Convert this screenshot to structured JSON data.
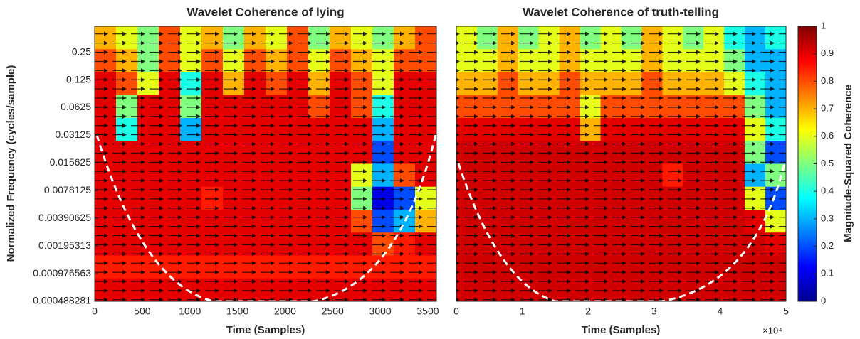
{
  "chart_data": [
    {
      "type": "heatmap",
      "title": "Wavelet Coherence of lying",
      "xlabel": "Time (Samples)",
      "ylabel": "Normalized Frequency  (cycles/sample)",
      "xlim": [
        0,
        3590
      ],
      "xticks": [
        0,
        500,
        1000,
        1500,
        2000,
        2500,
        3000,
        3500
      ],
      "ylim": [
        0.000488281,
        0.48
      ],
      "yscale": "log2",
      "yticks": [
        0.000488281,
        0.000976563,
        0.00195313,
        0.00390625,
        0.0078125,
        0.015625,
        0.03125,
        0.0625,
        0.125,
        0.25
      ],
      "z": [
        [
          0.7,
          0.6,
          0.5,
          0.8,
          0.6,
          0.7,
          0.5,
          0.7,
          0.6,
          0.8,
          0.5,
          0.7,
          0.6,
          0.5,
          0.7,
          0.8
        ],
        [
          0.8,
          0.7,
          0.5,
          0.8,
          0.6,
          0.8,
          0.6,
          0.8,
          0.7,
          0.8,
          0.6,
          0.8,
          0.7,
          0.6,
          0.8,
          0.8
        ],
        [
          0.9,
          0.8,
          0.6,
          0.9,
          0.4,
          0.9,
          0.7,
          0.9,
          0.8,
          0.9,
          0.7,
          0.9,
          0.8,
          0.6,
          0.9,
          0.9
        ],
        [
          0.9,
          0.5,
          0.9,
          0.9,
          0.5,
          0.9,
          0.9,
          0.9,
          0.9,
          0.9,
          0.8,
          0.9,
          0.8,
          0.4,
          0.9,
          0.9
        ],
        [
          0.9,
          0.4,
          0.9,
          0.9,
          0.3,
          0.9,
          0.9,
          0.9,
          0.9,
          0.9,
          0.9,
          0.9,
          0.9,
          0.3,
          0.9,
          0.9
        ],
        [
          0.9,
          0.9,
          0.9,
          0.9,
          0.9,
          0.9,
          0.9,
          0.9,
          0.9,
          0.9,
          0.9,
          0.9,
          0.9,
          0.2,
          0.9,
          0.9
        ],
        [
          0.9,
          0.9,
          0.9,
          0.9,
          0.9,
          0.9,
          0.9,
          0.9,
          0.9,
          0.9,
          0.9,
          0.9,
          0.6,
          0.3,
          0.8,
          0.9
        ],
        [
          0.9,
          0.9,
          0.9,
          0.9,
          0.9,
          0.85,
          0.9,
          0.9,
          0.9,
          0.9,
          0.9,
          0.9,
          0.5,
          0.1,
          0.2,
          0.6
        ],
        [
          0.9,
          0.9,
          0.9,
          0.9,
          0.9,
          0.9,
          0.9,
          0.9,
          0.9,
          0.9,
          0.9,
          0.9,
          0.8,
          0.2,
          0.3,
          0.7
        ],
        [
          0.9,
          0.9,
          0.9,
          0.9,
          0.9,
          0.9,
          0.9,
          0.9,
          0.9,
          0.9,
          0.9,
          0.9,
          0.9,
          0.8,
          0.85,
          0.9
        ],
        [
          0.85,
          0.85,
          0.85,
          0.85,
          0.85,
          0.85,
          0.85,
          0.85,
          0.85,
          0.85,
          0.85,
          0.85,
          0.85,
          0.85,
          0.85,
          0.85
        ],
        [
          0.9,
          0.9,
          0.9,
          0.9,
          0.9,
          0.9,
          0.9,
          0.9,
          0.9,
          0.9,
          0.9,
          0.9,
          0.9,
          0.9,
          0.9,
          0.9
        ]
      ]
    },
    {
      "type": "heatmap",
      "title": "Wavelet Coherence of truth-telling",
      "xlabel": "Time (Samples)",
      "x_scale_label": "×10⁴",
      "xlim": [
        0,
        5
      ],
      "xticks": [
        0,
        1,
        2,
        3,
        4,
        5
      ],
      "ylim": [
        0.000488281,
        0.48
      ],
      "yscale": "log2",
      "z": [
        [
          0.6,
          0.5,
          0.7,
          0.5,
          0.6,
          0.7,
          0.5,
          0.6,
          0.5,
          0.7,
          0.6,
          0.5,
          0.6,
          0.4,
          0.3,
          0.4
        ],
        [
          0.6,
          0.6,
          0.7,
          0.6,
          0.6,
          0.7,
          0.6,
          0.6,
          0.6,
          0.7,
          0.6,
          0.6,
          0.6,
          0.5,
          0.3,
          0.3
        ],
        [
          0.7,
          0.7,
          0.8,
          0.7,
          0.7,
          0.8,
          0.7,
          0.7,
          0.7,
          0.8,
          0.7,
          0.7,
          0.7,
          0.6,
          0.4,
          0.3
        ],
        [
          0.8,
          0.8,
          0.8,
          0.8,
          0.8,
          0.8,
          0.6,
          0.8,
          0.8,
          0.8,
          0.8,
          0.8,
          0.8,
          0.8,
          0.5,
          0.3
        ],
        [
          0.9,
          0.9,
          0.9,
          0.9,
          0.9,
          0.9,
          0.7,
          0.9,
          0.9,
          0.9,
          0.9,
          0.9,
          0.9,
          0.9,
          0.6,
          0.4
        ],
        [
          0.92,
          0.92,
          0.92,
          0.92,
          0.92,
          0.92,
          0.92,
          0.92,
          0.92,
          0.92,
          0.92,
          0.92,
          0.92,
          0.92,
          0.5,
          0.2
        ],
        [
          0.92,
          0.92,
          0.92,
          0.92,
          0.92,
          0.92,
          0.92,
          0.92,
          0.92,
          0.92,
          0.85,
          0.92,
          0.92,
          0.92,
          0.3,
          0.5
        ],
        [
          0.92,
          0.92,
          0.92,
          0.92,
          0.92,
          0.92,
          0.92,
          0.92,
          0.92,
          0.92,
          0.92,
          0.92,
          0.92,
          0.92,
          0.6,
          0.2
        ],
        [
          0.92,
          0.92,
          0.92,
          0.92,
          0.92,
          0.92,
          0.92,
          0.92,
          0.92,
          0.92,
          0.92,
          0.92,
          0.92,
          0.92,
          0.9,
          0.6
        ],
        [
          0.92,
          0.92,
          0.92,
          0.92,
          0.92,
          0.92,
          0.92,
          0.92,
          0.92,
          0.92,
          0.92,
          0.92,
          0.92,
          0.92,
          0.92,
          0.9
        ],
        [
          0.92,
          0.92,
          0.92,
          0.92,
          0.92,
          0.92,
          0.92,
          0.92,
          0.92,
          0.92,
          0.92,
          0.92,
          0.92,
          0.92,
          0.92,
          0.92
        ],
        [
          0.92,
          0.92,
          0.92,
          0.92,
          0.92,
          0.92,
          0.92,
          0.92,
          0.92,
          0.92,
          0.92,
          0.92,
          0.92,
          0.92,
          0.92,
          0.92
        ]
      ],
      "colorbar": {
        "label": "Magnitude-Squared Coherence",
        "lim": [
          0,
          1
        ],
        "ticks": [
          0,
          0.1,
          0.2,
          0.3,
          0.4,
          0.5,
          0.6,
          0.7,
          0.8,
          0.9,
          1
        ]
      }
    }
  ]
}
